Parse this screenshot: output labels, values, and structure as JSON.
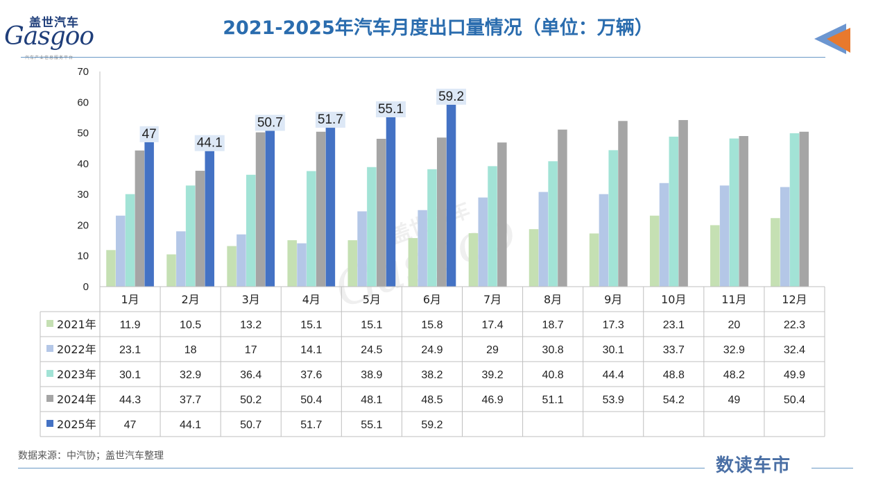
{
  "header": {
    "title": "2021-2025年汽车月度出口量情况（单位：万辆）",
    "logo_cn": "盖世汽车",
    "logo_en": "Gasgoo",
    "logo_sub": "汽车产业信息服务平台",
    "arrow_icon": "back-arrow-icon",
    "arrow_colors": [
      "#3b73c0",
      "#e8792d"
    ]
  },
  "watermark": {
    "cn": "盖世汽车",
    "en": "Gasgoo"
  },
  "footer": {
    "source": "数据来源：中汽协；盖世汽车整理",
    "brand": "数读车市"
  },
  "chart_data": {
    "type": "bar",
    "categories": [
      "1月",
      "2月",
      "3月",
      "4月",
      "5月",
      "6月",
      "7月",
      "8月",
      "9月",
      "10月",
      "11月",
      "12月"
    ],
    "ylim": [
      0,
      70
    ],
    "yticks": [
      0,
      10,
      20,
      30,
      40,
      50,
      60,
      70
    ],
    "title": "2021-2025年汽车月度出口量情况（单位：万辆）",
    "series": [
      {
        "name": "2021年",
        "color": "#c5e0b3",
        "values": [
          11.9,
          10.5,
          13.2,
          15.1,
          15.1,
          15.8,
          17.4,
          18.7,
          17.3,
          23.1,
          20,
          22.3
        ]
      },
      {
        "name": "2022年",
        "color": "#b4c7e7",
        "values": [
          23.1,
          18,
          17,
          14.1,
          24.5,
          24.9,
          29,
          30.8,
          30.1,
          33.7,
          32.9,
          32.4
        ]
      },
      {
        "name": "2023年",
        "color": "#a2e3d6",
        "values": [
          30.1,
          32.9,
          36.4,
          37.6,
          38.9,
          38.2,
          39.2,
          40.8,
          44.4,
          48.8,
          48.2,
          49.9
        ]
      },
      {
        "name": "2024年",
        "color": "#a5a5a5",
        "values": [
          44.3,
          37.7,
          50.2,
          50.4,
          48.1,
          48.5,
          46.9,
          51.1,
          53.9,
          54.2,
          49,
          50.4
        ]
      },
      {
        "name": "2025年",
        "color": "#4472c4",
        "values": [
          47,
          44.1,
          50.7,
          51.7,
          55.1,
          59.2,
          null,
          null,
          null,
          null,
          null,
          null
        ]
      }
    ],
    "data_labels_series": "2025年",
    "legend": "data-table"
  }
}
